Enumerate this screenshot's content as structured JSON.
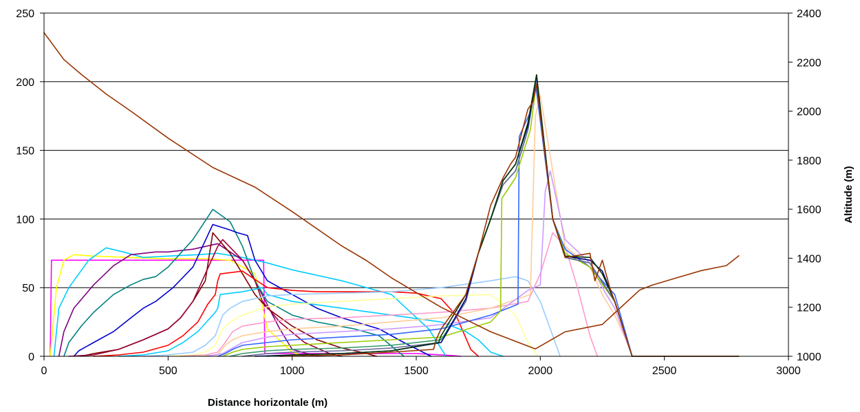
{
  "chart_data": {
    "type": "line",
    "xlabel": "Distance horizontale (m)",
    "ylabel": "",
    "y2label": "Altitude (m)",
    "xlim": [
      0,
      3000
    ],
    "ylim": [
      0,
      250
    ],
    "y2lim": [
      1000,
      2400
    ],
    "x_ticks": [
      0,
      500,
      1000,
      1500,
      2000,
      2500,
      3000
    ],
    "y_ticks": [
      0,
      50,
      100,
      150,
      200,
      250
    ],
    "y2_ticks": [
      1000,
      1200,
      1400,
      1600,
      1800,
      2000,
      2200,
      2400
    ],
    "grid": "horizontal",
    "legend": "none",
    "series": [
      {
        "color": "#FF00FF",
        "axis": "left",
        "x": [
          25,
          30,
          35,
          880,
          885,
          890,
          1500,
          1600,
          1650,
          1680
        ],
        "y": [
          0,
          70,
          70,
          70,
          70,
          2,
          2,
          1,
          0.5,
          0
        ]
      },
      {
        "color": "#FFFF00",
        "axis": "left",
        "x": [
          25,
          50,
          80,
          120,
          200,
          350,
          500,
          650,
          750,
          850,
          900,
          1000,
          1050
        ],
        "y": [
          0,
          50,
          70,
          74,
          73,
          72,
          71,
          71,
          70,
          60,
          20,
          3,
          0
        ]
      },
      {
        "color": "#00CCFF",
        "axis": "left",
        "x": [
          40,
          60,
          100,
          180,
          250,
          320,
          400,
          500,
          620,
          700,
          800,
          900,
          1000,
          1200,
          1400,
          1550,
          1620
        ],
        "y": [
          0,
          35,
          50,
          70,
          79,
          76,
          72,
          73,
          74,
          75,
          72,
          68,
          63,
          55,
          45,
          20,
          0
        ]
      },
      {
        "color": "#800080",
        "axis": "left",
        "x": [
          60,
          80,
          120,
          200,
          280,
          350,
          400,
          450,
          500,
          600,
          700,
          800,
          850,
          950,
          1000,
          1100
        ],
        "y": [
          0,
          18,
          35,
          52,
          66,
          74,
          75,
          76,
          76,
          78,
          82,
          70,
          55,
          20,
          5,
          0
        ]
      },
      {
        "color": "#008080",
        "axis": "left",
        "x": [
          80,
          100,
          150,
          200,
          280,
          350,
          400,
          450,
          500,
          600,
          680,
          750,
          800,
          850,
          900,
          1000,
          1100,
          1250,
          1350,
          1450
        ],
        "y": [
          0,
          10,
          22,
          32,
          45,
          52,
          56,
          58,
          65,
          85,
          107,
          98,
          80,
          55,
          40,
          30,
          25,
          20,
          15,
          0
        ]
      },
      {
        "color": "#0000CC",
        "axis": "left",
        "x": [
          120,
          140,
          200,
          280,
          350,
          400,
          450,
          520,
          600,
          680,
          750,
          780,
          820,
          850,
          900,
          1000,
          1100,
          1200,
          1350,
          1450,
          1560
        ],
        "y": [
          0,
          4,
          10,
          18,
          28,
          35,
          40,
          50,
          65,
          96,
          92,
          90,
          88,
          70,
          55,
          45,
          35,
          28,
          20,
          10,
          0
        ]
      },
      {
        "color": "#800000",
        "axis": "left",
        "x": [
          150,
          200,
          300,
          400,
          500,
          550,
          600,
          650,
          680,
          750,
          800,
          850,
          900,
          1000,
          1100,
          1200,
          1300,
          1340
        ],
        "y": [
          0,
          2,
          5,
          12,
          20,
          28,
          40,
          55,
          90,
          75,
          60,
          45,
          35,
          22,
          12,
          6,
          2,
          0
        ]
      },
      {
        "color": "#990033",
        "axis": "left",
        "x": [
          100,
          200,
          300,
          400,
          500,
          550,
          600,
          650,
          700,
          720,
          800,
          850,
          880,
          950,
          1050,
          1150,
          1200
        ],
        "y": [
          0,
          1,
          5,
          12,
          20,
          28,
          40,
          60,
          80,
          85,
          70,
          55,
          40,
          25,
          10,
          2,
          0
        ]
      },
      {
        "color": "#FF0000",
        "axis": "left",
        "x": [
          200,
          300,
          400,
          500,
          560,
          620,
          660,
          690,
          700,
          710,
          800,
          900,
          1000,
          1100,
          1200,
          1300,
          1400,
          1500,
          1600,
          1660,
          1720,
          1750
        ],
        "y": [
          0,
          1,
          3,
          8,
          15,
          25,
          38,
          45,
          55,
          60,
          62,
          50,
          48,
          47,
          47,
          47,
          47,
          46,
          42,
          30,
          5,
          0
        ]
      },
      {
        "color": "#00CCFF",
        "axis": "left",
        "x": [
          300,
          400,
          500,
          560,
          620,
          660,
          690,
          700,
          710,
          800,
          880,
          900,
          1000,
          1200,
          1400,
          1600,
          1700,
          1750,
          1800,
          1850
        ],
        "y": [
          0,
          1,
          4,
          10,
          18,
          26,
          32,
          35,
          45,
          47,
          50,
          45,
          40,
          35,
          30,
          25,
          18,
          12,
          3,
          0
        ]
      },
      {
        "color": "#99CCFF",
        "axis": "left",
        "x": [
          400,
          500,
          600,
          650,
          690,
          720,
          750,
          800,
          900,
          1000,
          1200,
          1400,
          1600,
          1800,
          1900,
          1950,
          2000,
          2050,
          2080
        ],
        "y": [
          0,
          1,
          3,
          8,
          15,
          30,
          35,
          40,
          44,
          45,
          46,
          47,
          50,
          55,
          58,
          55,
          40,
          15,
          0
        ]
      },
      {
        "color": "#FFFF99",
        "axis": "left",
        "x": [
          500,
          600,
          650,
          690,
          720,
          750,
          800,
          900,
          1000,
          1200,
          1400,
          1600,
          1800,
          1900,
          1950,
          1990
        ],
        "y": [
          0,
          1,
          3,
          8,
          20,
          25,
          30,
          36,
          38,
          40,
          42,
          44,
          45,
          30,
          10,
          0
        ]
      },
      {
        "color": "#FF99CC",
        "axis": "left",
        "x": [
          550,
          650,
          700,
          730,
          760,
          800,
          900,
          1000,
          1200,
          1400,
          1600,
          1800,
          1950,
          2000,
          2050,
          2100,
          2150,
          2200,
          2230
        ],
        "y": [
          0,
          1,
          3,
          10,
          18,
          22,
          25,
          27,
          28,
          30,
          32,
          35,
          40,
          60,
          90,
          80,
          50,
          15,
          0
        ]
      },
      {
        "color": "#FFCC99",
        "axis": "left",
        "x": [
          600,
          700,
          730,
          760,
          800,
          900,
          1000,
          1200,
          1400,
          1600,
          1800,
          1960,
          1980,
          2000,
          2100,
          2200,
          2250,
          2300,
          2350,
          2370
        ],
        "y": [
          0,
          1,
          8,
          12,
          15,
          18,
          20,
          22,
          25,
          28,
          35,
          45,
          175,
          190,
          80,
          65,
          45,
          30,
          10,
          0
        ]
      },
      {
        "color": "#CC99FF",
        "axis": "left",
        "x": [
          650,
          720,
          760,
          800,
          900,
          1000,
          1200,
          1400,
          1600,
          1800,
          1950,
          2000,
          2020,
          2040,
          2100,
          2200,
          2250,
          2300,
          2350,
          2370
        ],
        "y": [
          0,
          2,
          6,
          10,
          14,
          16,
          18,
          20,
          23,
          28,
          48,
          52,
          120,
          135,
          85,
          68,
          50,
          35,
          10,
          0
        ]
      },
      {
        "color": "#3366FF",
        "axis": "left",
        "x": [
          700,
          730,
          760,
          800,
          900,
          1000,
          1200,
          1400,
          1600,
          1800,
          1910,
          1915,
          1960,
          1980,
          2050,
          2100,
          2200,
          2300,
          2370
        ],
        "y": [
          0,
          2,
          5,
          8,
          10,
          12,
          14,
          16,
          20,
          30,
          38,
          160,
          178,
          200,
          100,
          78,
          65,
          45,
          0
        ]
      },
      {
        "color": "#99CC00",
        "axis": "left",
        "x": [
          720,
          760,
          800,
          900,
          1000,
          1200,
          1400,
          1600,
          1800,
          1840,
          1845,
          1900,
          1960,
          1985,
          2050,
          2100,
          2200,
          2300,
          2370
        ],
        "y": [
          0,
          3,
          5,
          7,
          8,
          10,
          12,
          14,
          25,
          33,
          115,
          130,
          165,
          200,
          100,
          75,
          65,
          40,
          0
        ]
      },
      {
        "color": "#339966",
        "axis": "left",
        "x": [
          750,
          800,
          900,
          1000,
          1200,
          1400,
          1600,
          1700,
          1750,
          1800,
          1850,
          1900,
          1950,
          1985,
          2050,
          2100,
          2200,
          2300,
          2370
        ],
        "y": [
          0,
          2,
          4,
          5,
          6,
          8,
          12,
          40,
          75,
          100,
          125,
          135,
          165,
          203,
          100,
          72,
          68,
          40,
          0
        ]
      },
      {
        "color": "#666699",
        "axis": "left",
        "x": [
          800,
          900,
          1000,
          1200,
          1400,
          1600,
          1700,
          1750,
          1800,
          1850,
          1900,
          1950,
          1985,
          2050,
          2100,
          2200,
          2300,
          2370
        ],
        "y": [
          0,
          2,
          3,
          4,
          6,
          10,
          40,
          75,
          100,
          125,
          135,
          165,
          202,
          100,
          72,
          68,
          40,
          0
        ]
      },
      {
        "color": "#000080",
        "axis": "left",
        "x": [
          850,
          1000,
          1200,
          1400,
          1600,
          1700,
          1750,
          1800,
          1850,
          1900,
          1950,
          1985,
          2050,
          2100,
          2200,
          2250,
          2300,
          2370
        ],
        "y": [
          0,
          1,
          2,
          4,
          10,
          42,
          75,
          100,
          128,
          140,
          168,
          205,
          100,
          73,
          70,
          62,
          40,
          0
        ]
      },
      {
        "color": "#003300",
        "axis": "left",
        "x": [
          900,
          1000,
          1200,
          1400,
          1590,
          1600,
          1700,
          1750,
          1800,
          1850,
          1900,
          1950,
          1985,
          2050,
          2100,
          2200,
          2250,
          2300,
          2370,
          2800
        ],
        "y": [
          0,
          1,
          2,
          4,
          10,
          15,
          45,
          75,
          100,
          128,
          140,
          170,
          205,
          100,
          73,
          72,
          60,
          40,
          0,
          0
        ]
      },
      {
        "color": "#993300",
        "axis": "left",
        "x": [
          950,
          1200,
          1400,
          1570,
          1580,
          1600,
          1700,
          1750,
          1800,
          1850,
          1880,
          1900,
          1950,
          1970,
          1985,
          2050,
          2100,
          2200,
          2220,
          2250,
          2280,
          2300,
          2370,
          2800
        ],
        "y": [
          0,
          1,
          3,
          5,
          12,
          20,
          45,
          75,
          110,
          130,
          140,
          145,
          180,
          185,
          198,
          100,
          72,
          75,
          55,
          70,
          50,
          40,
          0,
          0
        ]
      },
      {
        "color": "#993300",
        "axis": "right",
        "x": [
          0,
          80,
          150,
          250,
          350,
          500,
          680,
          850,
          1000,
          1200,
          1300,
          1400,
          1600,
          1800,
          1980,
          2100,
          2250,
          2400,
          2450,
          2550,
          2650,
          2750,
          2800
        ],
        "y": [
          2320,
          2210,
          2150,
          2070,
          2000,
          1890,
          1770,
          1690,
          1590,
          1450,
          1390,
          1320,
          1200,
          1100,
          1030,
          1100,
          1130,
          1270,
          1290,
          1320,
          1350,
          1370,
          1410
        ]
      }
    ]
  }
}
